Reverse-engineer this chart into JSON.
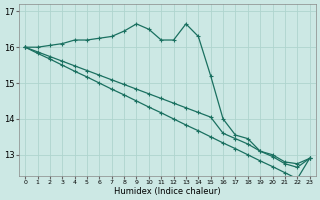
{
  "xlabel": "Humidex (Indice chaleur)",
  "bg_color": "#cce8e4",
  "grid_color": "#afd4ce",
  "line_color": "#1a7060",
  "x": [
    0,
    1,
    2,
    3,
    4,
    5,
    6,
    7,
    8,
    9,
    10,
    11,
    12,
    13,
    14,
    15,
    16,
    17,
    18,
    19,
    20,
    21,
    22,
    23
  ],
  "ylim": [
    12.4,
    17.2
  ],
  "yticks": [
    13,
    14,
    15,
    16,
    17
  ],
  "series": {
    "curve": [
      16.0,
      16.0,
      16.05,
      16.1,
      16.2,
      16.2,
      16.25,
      16.3,
      16.45,
      16.65,
      16.5,
      16.2,
      16.2,
      16.65,
      16.3,
      15.2,
      14.0,
      13.55,
      13.45,
      13.1,
      13.0,
      12.8,
      12.75,
      12.9
    ],
    "diag1": [
      16.0,
      15.83,
      15.67,
      15.5,
      15.33,
      15.17,
      15.0,
      14.83,
      14.67,
      14.5,
      14.33,
      14.17,
      14.0,
      13.83,
      13.67,
      13.5,
      13.33,
      13.17,
      13.0,
      12.83,
      12.67,
      12.5,
      12.33,
      12.9
    ],
    "diag2": [
      16.0,
      15.87,
      15.74,
      15.61,
      15.48,
      15.35,
      15.22,
      15.09,
      14.96,
      14.83,
      14.7,
      14.57,
      14.44,
      14.31,
      14.18,
      14.05,
      13.6,
      13.45,
      13.3,
      13.1,
      12.95,
      12.75,
      12.65,
      12.9
    ]
  }
}
